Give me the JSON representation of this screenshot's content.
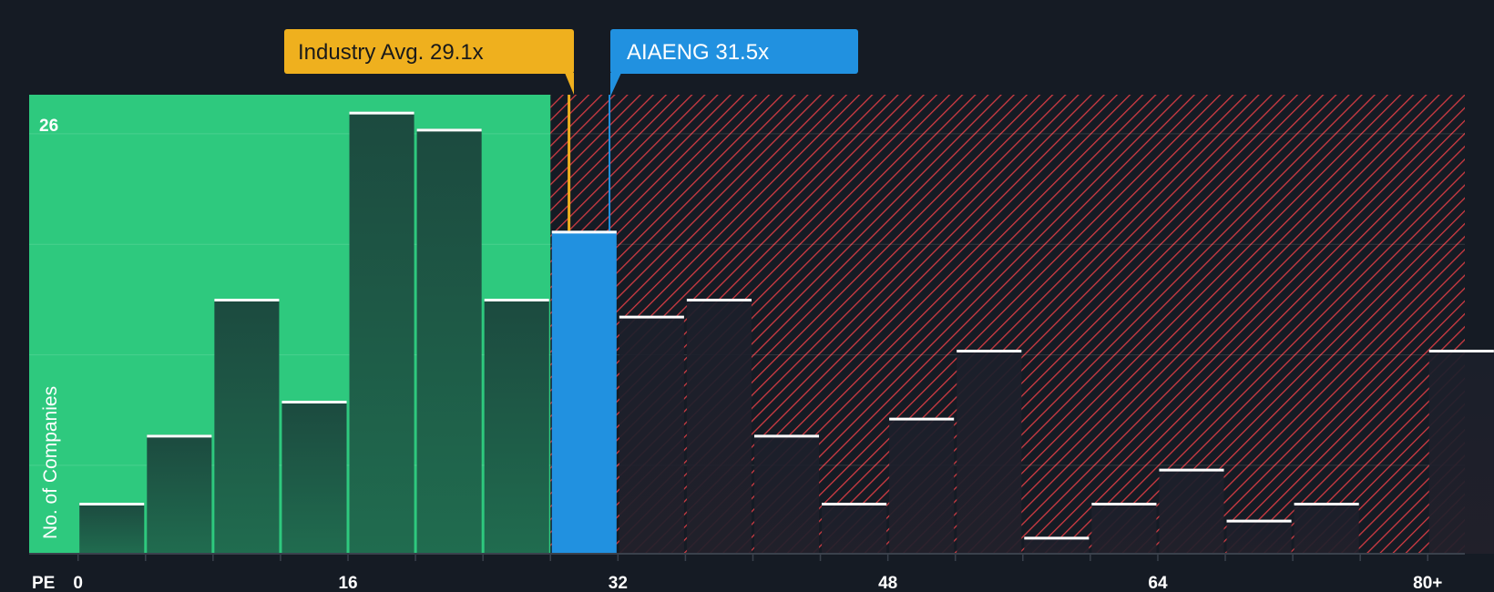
{
  "chart_data": {
    "type": "bar",
    "title": "",
    "xlabel": "PE",
    "ylabel": "No. of Companies",
    "x_ticks": [
      {
        "value": 0,
        "label": "0"
      },
      {
        "value": 16,
        "label": "16"
      },
      {
        "value": 32,
        "label": "32"
      },
      {
        "value": 48,
        "label": "48"
      },
      {
        "value": 64,
        "label": "64"
      },
      {
        "value": 80,
        "label": "80+"
      }
    ],
    "y_ticks": [
      {
        "value": 26,
        "label": "26"
      }
    ],
    "xlim": [
      -2.9,
      82.2
    ],
    "ylim": [
      0,
      27
    ],
    "bin_width": 4,
    "bins": [
      {
        "start": 0,
        "value": 3
      },
      {
        "start": 4,
        "value": 7
      },
      {
        "start": 8,
        "value": 15
      },
      {
        "start": 12,
        "value": 9
      },
      {
        "start": 16,
        "value": 26
      },
      {
        "start": 20,
        "value": 25
      },
      {
        "start": 24,
        "value": 15
      },
      {
        "start": 28,
        "value": 19,
        "highlight": true
      },
      {
        "start": 32,
        "value": 14
      },
      {
        "start": 36,
        "value": 15
      },
      {
        "start": 40,
        "value": 7
      },
      {
        "start": 44,
        "value": 3
      },
      {
        "start": 48,
        "value": 8
      },
      {
        "start": 52,
        "value": 12
      },
      {
        "start": 56,
        "value": 1
      },
      {
        "start": 60,
        "value": 3
      },
      {
        "start": 64,
        "value": 5
      },
      {
        "start": 68,
        "value": 2
      },
      {
        "start": 72,
        "value": 3
      },
      {
        "start": 76,
        "value": 0
      },
      {
        "start": 80,
        "value": 12
      }
    ],
    "industry_avg": {
      "value": 29.1,
      "label": "Industry Avg. 29.1x"
    },
    "company": {
      "value": 31.5,
      "label": "AIAENG 31.5x"
    },
    "fair_region_end": 28
  },
  "colors": {
    "background": "#151b24",
    "fair_region": "#2ec97e",
    "bar_fair": "#1f4a3e",
    "bar_expensive": "#1d1f2a",
    "highlight_bar": "#2191e0",
    "hatch": "#d13b43",
    "industry_callout": "#efb01e",
    "company_callout": "#2191e0",
    "cap": "#ffffff",
    "grid": "#ffffff"
  }
}
